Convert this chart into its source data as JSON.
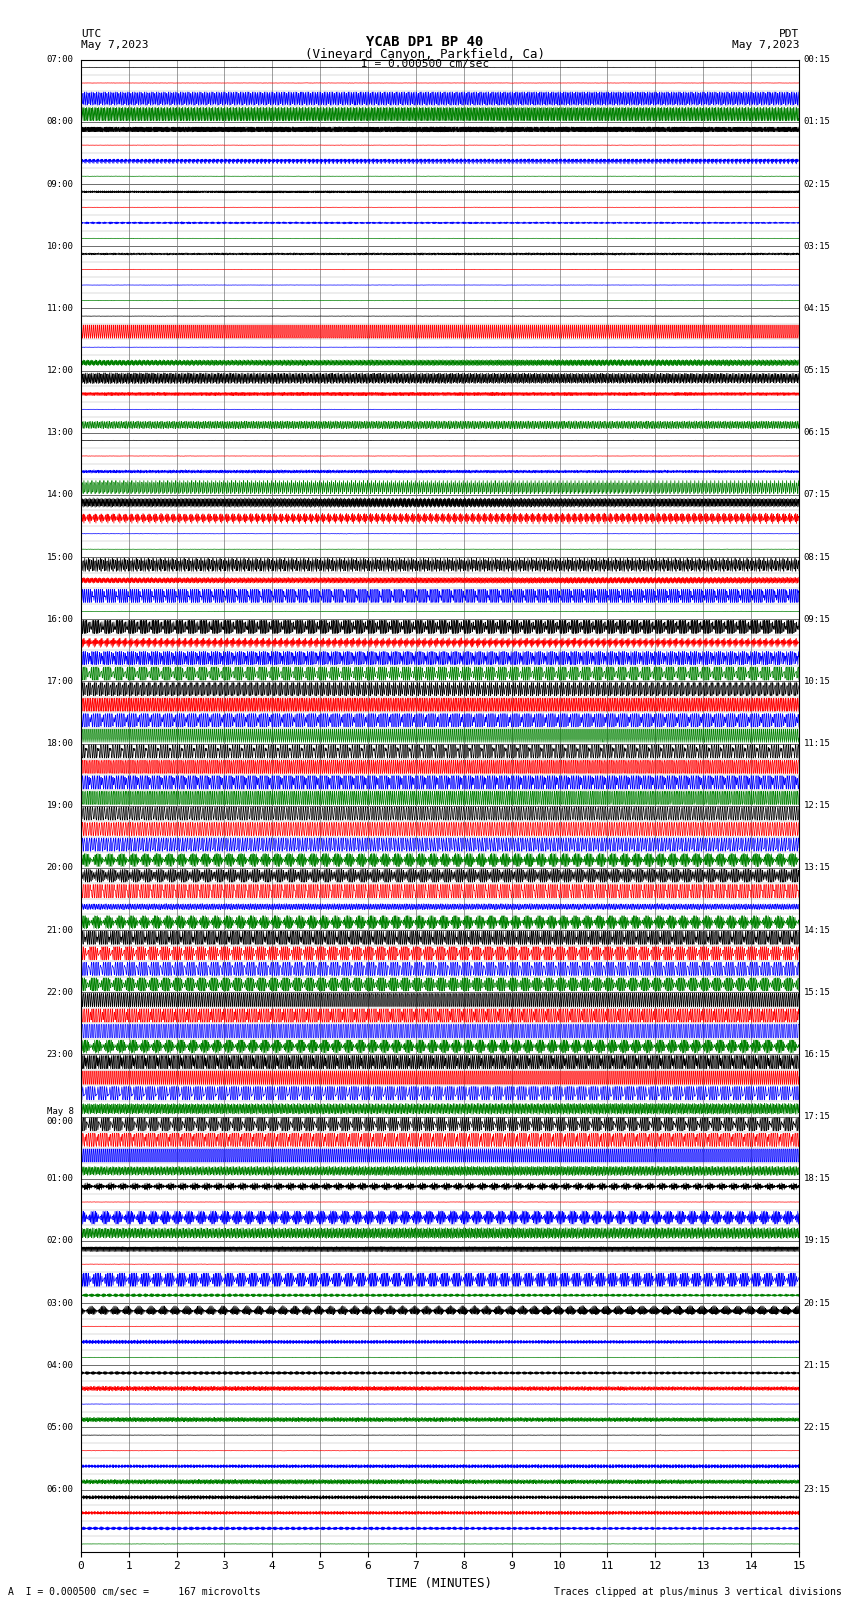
{
  "title_line1": "YCAB DP1 BP 40",
  "title_line2": "(Vineyard Canyon, Parkfield, Ca)",
  "scale_text": "I = 0.000500 cm/sec",
  "utc_label": "UTC",
  "date_left": "May 7,2023",
  "date_right": "May 7,2023",
  "pdt_label": "PDT",
  "xlabel": "TIME (MINUTES)",
  "footer_left": "A  I = 0.000500 cm/sec =     167 microvolts",
  "footer_right": "Traces clipped at plus/minus 3 vertical divisions",
  "left_times": [
    "07:00",
    "08:00",
    "09:00",
    "10:00",
    "11:00",
    "12:00",
    "13:00",
    "14:00",
    "15:00",
    "16:00",
    "17:00",
    "18:00",
    "19:00",
    "20:00",
    "21:00",
    "22:00",
    "23:00",
    "May 8\n00:00",
    "01:00",
    "02:00",
    "03:00",
    "04:00",
    "05:00",
    "06:00"
  ],
  "right_times": [
    "00:15",
    "01:15",
    "02:15",
    "03:15",
    "04:15",
    "05:15",
    "06:15",
    "07:15",
    "08:15",
    "09:15",
    "10:15",
    "11:15",
    "12:15",
    "13:15",
    "14:15",
    "15:15",
    "16:15",
    "17:15",
    "18:15",
    "19:15",
    "20:15",
    "21:15",
    "22:15",
    "23:15"
  ],
  "colors": [
    "black",
    "red",
    "blue",
    "green"
  ],
  "num_rows": 24,
  "traces_per_row": 4,
  "minutes": 15,
  "background": "white"
}
